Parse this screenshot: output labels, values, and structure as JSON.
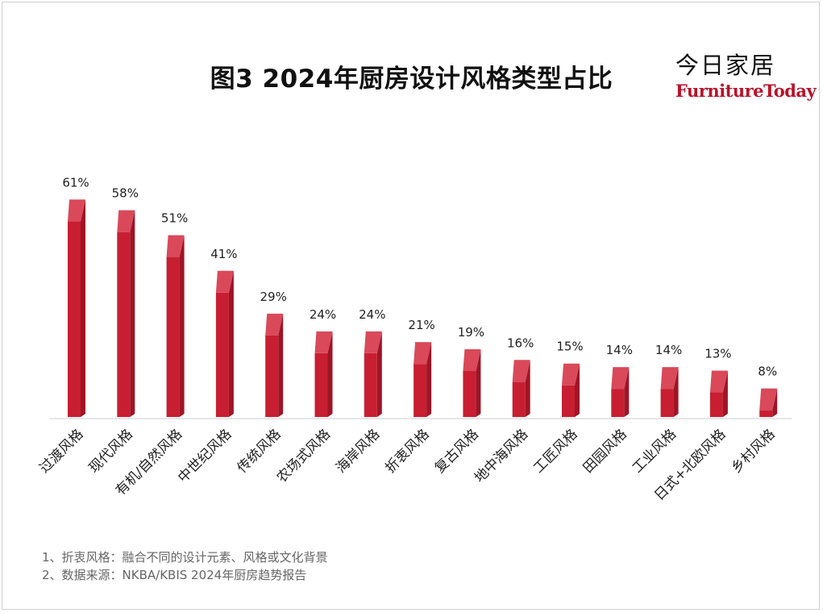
{
  "title": "图3 2024年厨房设计风格类型占比",
  "brand": {
    "cn": "今日家居",
    "en": "FurnitureToday"
  },
  "notes": [
    "1、折衷风格：融合不同的设计元素、风格或文化背景",
    "2、数据来源：NKBA/KBIS 2024年厨房趋势报告"
  ],
  "colors": {
    "bar_front": "#c81e32",
    "bar_top": "#d9495a",
    "bar_side": "#9e1526"
  },
  "chart_data": {
    "type": "bar",
    "title": "图3 2024年厨房设计风格类型占比",
    "categories": [
      "过渡风格",
      "现代风格",
      "有机/自然风格",
      "中世纪风格",
      "传统风格",
      "农场式风格",
      "海岸风格",
      "折衷风格",
      "复古风格",
      "地中海风格",
      "工匠风格",
      "田园风格",
      "工业风格",
      "日式+北欧风格",
      "乡村风格"
    ],
    "values": [
      61,
      58,
      51,
      41,
      29,
      24,
      24,
      21,
      19,
      16,
      15,
      14,
      14,
      13,
      8
    ],
    "value_labels": [
      "61%",
      "58%",
      "51%",
      "41%",
      "29%",
      "24%",
      "24%",
      "21%",
      "19%",
      "16%",
      "15%",
      "14%",
      "14%",
      "13%",
      "8%"
    ],
    "unit": "%",
    "ylim": [
      0,
      70
    ],
    "grid": false,
    "legend": "none"
  }
}
